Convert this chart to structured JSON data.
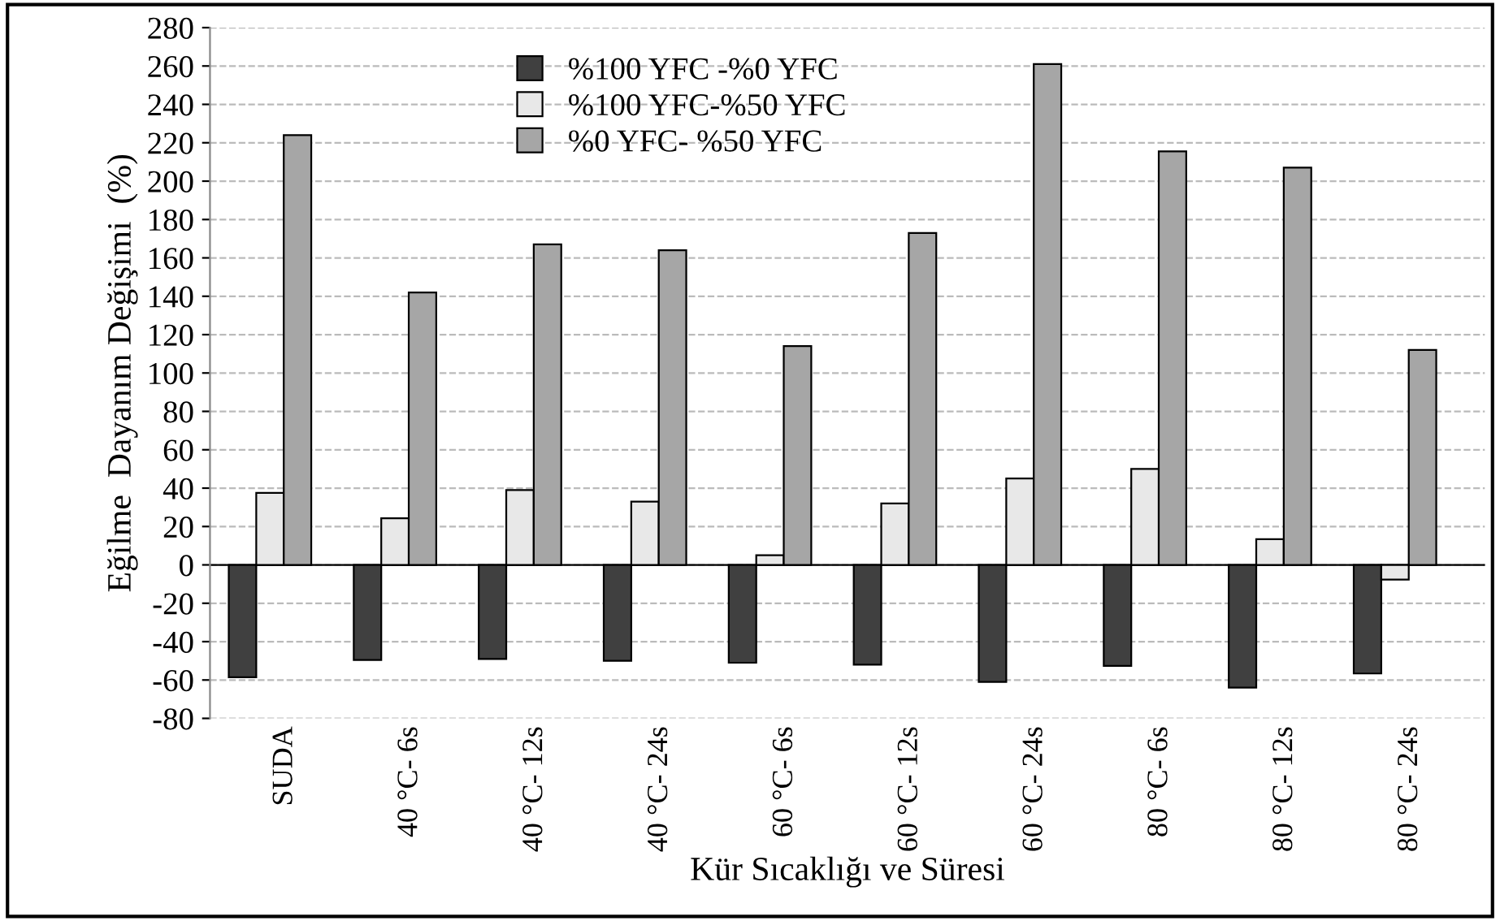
{
  "chart_data": {
    "type": "bar",
    "xlabel": "Kür Sıcaklığı ve Süresi",
    "ylabel": "Eğilme  Dayanım Değişimi  (%)",
    "categories": [
      "SUDA",
      "40 °C- 6s",
      "40 °C- 12s",
      "40 °C- 24s",
      "60 °C- 6s",
      "60 °C- 12s",
      "60 °C- 24s",
      "80 °C- 6s",
      "80 °C- 12s",
      "80 °C- 24s"
    ],
    "series": [
      {
        "name": "%100 YFC -%0 YFC",
        "color": "#404040",
        "values": [
          -58.6,
          -49.6,
          -49,
          -50,
          -51,
          -52,
          -61,
          -52.6,
          -64,
          -56.6
        ]
      },
      {
        "name": "%100 YFC-%50 YFC",
        "color": "#e8e8e8",
        "values": [
          37.5,
          24.3,
          39,
          33,
          5,
          32,
          45,
          50,
          13.4,
          -7.7
        ]
      },
      {
        "name": "%0 YFC- %50 YFC",
        "color": "#a6a6a6",
        "values": [
          224,
          142,
          167,
          164,
          114,
          173,
          261,
          215.5,
          207,
          112
        ]
      }
    ],
    "ylim": [
      -80,
      280
    ],
    "yticks": [
      -80,
      -60,
      -40,
      -20,
      0,
      20,
      40,
      60,
      80,
      100,
      120,
      140,
      160,
      180,
      200,
      220,
      240,
      260,
      280
    ],
    "grid": "y",
    "legend": "top"
  }
}
